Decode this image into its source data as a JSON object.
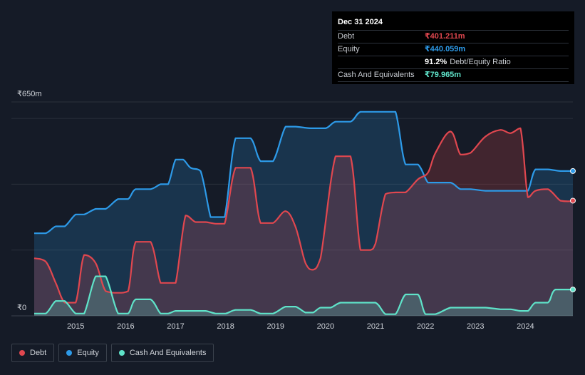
{
  "tooltip": {
    "date": "Dec 31 2024",
    "debt_label": "Debt",
    "debt_value": "₹401.211m",
    "equity_label": "Equity",
    "equity_value": "₹440.059m",
    "ratio_value": "91.2%",
    "ratio_label": "Debt/Equity Ratio",
    "cash_label": "Cash And Equivalents",
    "cash_value": "₹79.965m"
  },
  "legend": {
    "debt": "Debt",
    "equity": "Equity",
    "cash": "Cash And Equivalents"
  },
  "colors": {
    "debt": "#e0474f",
    "equity": "#2d9ae8",
    "cash": "#5fe3c9",
    "background": "#151b27"
  },
  "chart_data": {
    "type": "area",
    "ylim": [
      0,
      650
    ],
    "ytick_labels": {
      "top": "₹650m",
      "bottom": "₹0"
    },
    "x_tick_labels": [
      "2015",
      "2016",
      "2017",
      "2018",
      "2019",
      "2020",
      "2021",
      "2022",
      "2023",
      "2024"
    ],
    "series": [
      {
        "name": "Debt",
        "x": [
          2014.17,
          2014.4,
          2014.6,
          2014.78,
          2015.0,
          2015.17,
          2015.4,
          2015.6,
          2015.85,
          2016.05,
          2016.2,
          2016.5,
          2016.7,
          2016.85,
          2017.0,
          2017.2,
          2017.4,
          2017.6,
          2017.8,
          2017.98,
          2018.2,
          2018.5,
          2018.7,
          2018.95,
          2019.2,
          2019.4,
          2019.6,
          2019.75,
          2019.9,
          2020.2,
          2020.5,
          2020.7,
          2020.9,
          2021.0,
          2021.2,
          2021.4,
          2021.6,
          2021.85,
          2022.05,
          2022.2,
          2022.5,
          2022.7,
          2022.9,
          2023.2,
          2023.5,
          2023.7,
          2023.9,
          2024.05,
          2024.2,
          2024.45,
          2024.7,
          2024.85,
          2024.95
        ],
        "values": [
          175,
          165,
          100,
          40,
          40,
          185,
          160,
          75,
          70,
          75,
          225,
          225,
          100,
          100,
          100,
          305,
          285,
          285,
          280,
          280,
          450,
          450,
          282,
          282,
          318,
          270,
          160,
          140,
          175,
          485,
          485,
          200,
          200,
          220,
          370,
          375,
          375,
          415,
          435,
          495,
          560,
          490,
          495,
          545,
          565,
          555,
          570,
          360,
          380,
          385,
          350,
          348,
          350
        ]
      },
      {
        "name": "Equity",
        "x": [
          2014.17,
          2014.4,
          2014.6,
          2014.78,
          2015.0,
          2015.17,
          2015.4,
          2015.6,
          2015.85,
          2016.05,
          2016.2,
          2016.5,
          2016.7,
          2016.85,
          2017.0,
          2017.15,
          2017.3,
          2017.5,
          2017.7,
          2017.8,
          2017.98,
          2018.2,
          2018.5,
          2018.7,
          2018.95,
          2019.2,
          2019.4,
          2019.7,
          2020.0,
          2020.2,
          2020.5,
          2020.7,
          2021.0,
          2021.2,
          2021.4,
          2021.6,
          2021.85,
          2022.05,
          2022.2,
          2022.5,
          2022.7,
          2022.9,
          2023.2,
          2023.5,
          2023.7,
          2023.9,
          2024.05,
          2024.2,
          2024.45,
          2024.7,
          2024.95
        ],
        "values": [
          251,
          251,
          272,
          272,
          308,
          308,
          325,
          325,
          355,
          355,
          385,
          385,
          400,
          400,
          475,
          475,
          450,
          440,
          300,
          300,
          300,
          540,
          540,
          470,
          470,
          575,
          575,
          570,
          570,
          590,
          590,
          620,
          620,
          620,
          620,
          460,
          460,
          405,
          405,
          405,
          385,
          385,
          380,
          380,
          380,
          380,
          380,
          445,
          445,
          440,
          440
        ]
      },
      {
        "name": "Cash And Equivalents",
        "x": [
          2014.17,
          2014.4,
          2014.6,
          2014.78,
          2015.0,
          2015.17,
          2015.4,
          2015.6,
          2015.85,
          2016.05,
          2016.2,
          2016.5,
          2016.7,
          2016.85,
          2017.0,
          2017.15,
          2017.4,
          2017.6,
          2017.8,
          2018.0,
          2018.2,
          2018.5,
          2018.7,
          2018.95,
          2019.2,
          2019.4,
          2019.6,
          2019.75,
          2019.9,
          2020.1,
          2020.3,
          2020.55,
          2020.7,
          2021.0,
          2021.2,
          2021.4,
          2021.6,
          2021.85,
          2022.0,
          2022.2,
          2022.5,
          2022.7,
          2023.0,
          2023.2,
          2023.5,
          2023.7,
          2023.9,
          2024.05,
          2024.2,
          2024.45,
          2024.6,
          2024.95
        ],
        "values": [
          7,
          7,
          45,
          45,
          7,
          7,
          120,
          120,
          7,
          7,
          50,
          50,
          7,
          7,
          15,
          15,
          15,
          15,
          7,
          7,
          18,
          18,
          7,
          7,
          28,
          28,
          10,
          10,
          25,
          25,
          40,
          40,
          40,
          40,
          5,
          5,
          65,
          65,
          5,
          5,
          25,
          25,
          25,
          25,
          20,
          20,
          15,
          15,
          40,
          40,
          80,
          80
        ]
      }
    ],
    "xlim": [
      2014.17,
      2024.95
    ]
  }
}
